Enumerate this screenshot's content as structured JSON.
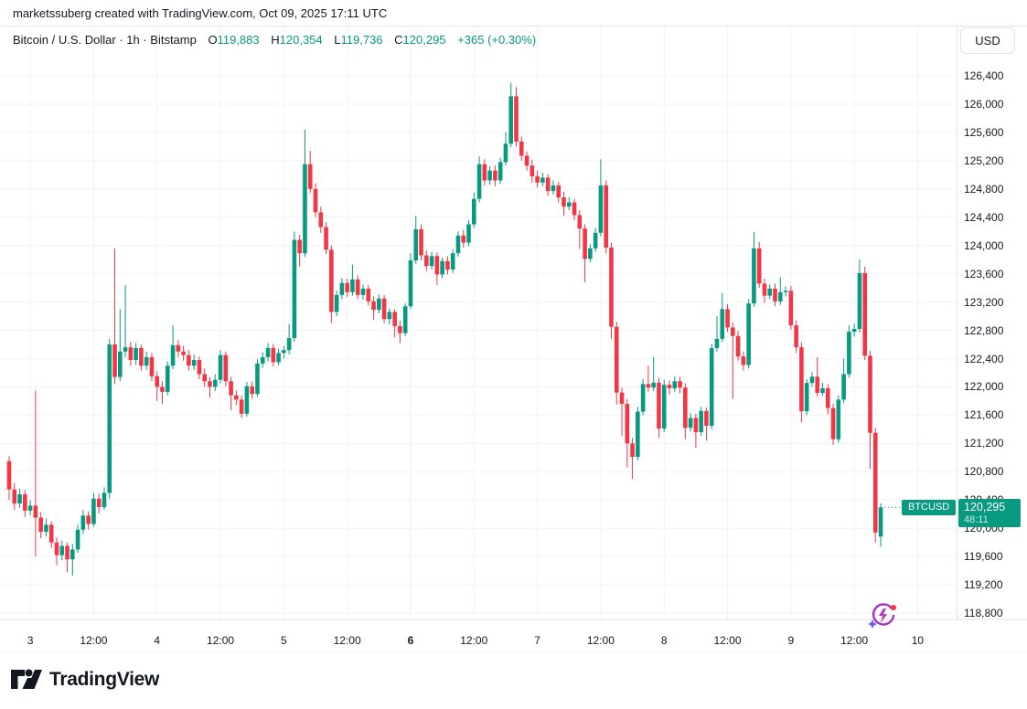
{
  "watermark": "marketssuberg created with TradingView.com, Oct 09, 2025 17:11 UTC",
  "legend": {
    "symbol_title": "Bitcoin / U.S. Dollar · 1h · Bitstamp",
    "open_label": "O",
    "open": "119,883",
    "high_label": "H",
    "high": "120,354",
    "low_label": "L",
    "low": "119,736",
    "close_label": "C",
    "close": "120,295",
    "change": "+365 (+0.30%)"
  },
  "currency_button": "USD",
  "symbol_tag": "BTCUSD",
  "price_tag": {
    "price": "120,295",
    "countdown": "48:11"
  },
  "logo_text": "TradingView",
  "icons": {
    "flash": "realtime-flash-icon"
  },
  "colors": {
    "up": "#089981",
    "down": "#F23645",
    "grid": "#F0F3FA",
    "separator": "#E0E3EB",
    "axis_text": "#131722",
    "tag_bg": "#089981"
  },
  "chart_data": {
    "type": "candlestick",
    "title": "Bitcoin / U.S. Dollar",
    "exchange": "Bitstamp",
    "interval": "1h",
    "current_price": 120295,
    "countdown": "48:11",
    "y_axis": {
      "min": 118800,
      "max": 126400,
      "tick_step": 400,
      "ticks": [
        126400,
        126000,
        125600,
        125200,
        124800,
        124400,
        124000,
        123600,
        123200,
        122800,
        122400,
        122000,
        121600,
        121200,
        120800,
        120400,
        120000,
        119600,
        119200,
        118800
      ]
    },
    "x_axis": {
      "ticks": [
        {
          "label": "3"
        },
        {
          "label": "12:00"
        },
        {
          "label": "4"
        },
        {
          "label": "12:00"
        },
        {
          "label": "5"
        },
        {
          "label": "12:00"
        },
        {
          "label": "6",
          "bold": true
        },
        {
          "label": "12:00"
        },
        {
          "label": "7"
        },
        {
          "label": "12:00"
        },
        {
          "label": "8"
        },
        {
          "label": "12:00"
        },
        {
          "label": "9"
        },
        {
          "label": "12:00"
        },
        {
          "label": "10"
        }
      ]
    },
    "candles": [
      [
        120950,
        121020,
        120400,
        120550
      ],
      [
        120550,
        120640,
        120260,
        120350
      ],
      [
        120350,
        120560,
        120290,
        120480
      ],
      [
        120480,
        120540,
        120160,
        120250
      ],
      [
        120250,
        120400,
        120180,
        120320
      ],
      [
        120320,
        121950,
        119600,
        120150
      ],
      [
        120150,
        120230,
        119860,
        119950
      ],
      [
        119950,
        120140,
        119880,
        120050
      ],
      [
        120050,
        120100,
        119720,
        119800
      ],
      [
        119800,
        119870,
        119480,
        119620
      ],
      [
        119620,
        119830,
        119550,
        119750
      ],
      [
        119750,
        119800,
        119380,
        119560
      ],
      [
        119560,
        119780,
        119330,
        119700
      ],
      [
        119700,
        120050,
        119650,
        119980
      ],
      [
        119980,
        120260,
        119920,
        120180
      ],
      [
        120180,
        120240,
        119980,
        120060
      ],
      [
        120060,
        120500,
        120020,
        120420
      ],
      [
        120420,
        120490,
        120210,
        120300
      ],
      [
        120300,
        120580,
        120260,
        120500
      ],
      [
        120500,
        122680,
        120420,
        122600
      ],
      [
        122600,
        123960,
        122040,
        122140
      ],
      [
        122140,
        123100,
        122080,
        122500
      ],
      [
        122500,
        123440,
        122420,
        122560
      ],
      [
        122560,
        122640,
        122300,
        122380
      ],
      [
        122380,
        122620,
        122310,
        122550
      ],
      [
        122550,
        122600,
        122230,
        122300
      ],
      [
        122300,
        122500,
        122240,
        122420
      ],
      [
        122420,
        122480,
        122080,
        122150
      ],
      [
        122150,
        122220,
        121800,
        122000
      ],
      [
        122000,
        122080,
        121760,
        121930
      ],
      [
        121930,
        122360,
        121880,
        122300
      ],
      [
        122300,
        122870,
        122250,
        122590
      ],
      [
        122590,
        122660,
        122420,
        122500
      ],
      [
        122500,
        122580,
        122370,
        122450
      ],
      [
        122450,
        122520,
        122230,
        122300
      ],
      [
        122300,
        122450,
        122240,
        122380
      ],
      [
        122380,
        122430,
        122110,
        122180
      ],
      [
        122180,
        122260,
        122000,
        122080
      ],
      [
        122080,
        122140,
        121850,
        122000
      ],
      [
        122000,
        122180,
        121940,
        122100
      ],
      [
        122100,
        122520,
        122050,
        122450
      ],
      [
        122450,
        122500,
        122010,
        122080
      ],
      [
        122080,
        122140,
        121670,
        121880
      ],
      [
        121880,
        121950,
        121740,
        121820
      ],
      [
        121820,
        121880,
        121560,
        121620
      ],
      [
        121620,
        122070,
        121580,
        122010
      ],
      [
        122010,
        122080,
        121830,
        121900
      ],
      [
        121900,
        122390,
        121860,
        122330
      ],
      [
        122330,
        122490,
        122270,
        122420
      ],
      [
        122420,
        122620,
        122360,
        122550
      ],
      [
        122550,
        122610,
        122290,
        122350
      ],
      [
        122350,
        122540,
        122300,
        122480
      ],
      [
        122480,
        122580,
        122400,
        122520
      ],
      [
        122520,
        122890,
        122460,
        122690
      ],
      [
        122690,
        124200,
        122640,
        124080
      ],
      [
        124080,
        124150,
        123700,
        123890
      ],
      [
        123890,
        125640,
        123840,
        125150
      ],
      [
        125150,
        125340,
        124740,
        124800
      ],
      [
        124800,
        124880,
        124400,
        124470
      ],
      [
        124470,
        124550,
        124180,
        124260
      ],
      [
        124260,
        124330,
        123880,
        123940
      ],
      [
        123940,
        124000,
        122900,
        123060
      ],
      [
        123060,
        123360,
        123000,
        123300
      ],
      [
        123300,
        123540,
        123240,
        123470
      ],
      [
        123470,
        123530,
        123270,
        123340
      ],
      [
        123340,
        123730,
        123290,
        123520
      ],
      [
        123520,
        123580,
        123240,
        123300
      ],
      [
        123300,
        123450,
        123230,
        123390
      ],
      [
        123390,
        123440,
        123150,
        123210
      ],
      [
        123210,
        123280,
        122950,
        123090
      ],
      [
        123090,
        123310,
        123040,
        123250
      ],
      [
        123250,
        123300,
        122900,
        122960
      ],
      [
        122960,
        123110,
        122880,
        123060
      ],
      [
        123060,
        123100,
        122700,
        122860
      ],
      [
        122860,
        122940,
        122620,
        122760
      ],
      [
        122760,
        123180,
        122720,
        123140
      ],
      [
        123140,
        123890,
        123100,
        123790
      ],
      [
        123790,
        124420,
        123740,
        124230
      ],
      [
        124230,
        124300,
        123790,
        123860
      ],
      [
        123860,
        123930,
        123640,
        123710
      ],
      [
        123710,
        123910,
        123660,
        123850
      ],
      [
        123850,
        123900,
        123440,
        123590
      ],
      [
        123590,
        123830,
        123540,
        123780
      ],
      [
        123780,
        123850,
        123590,
        123660
      ],
      [
        123660,
        123950,
        123610,
        123890
      ],
      [
        123890,
        124200,
        123840,
        124140
      ],
      [
        124140,
        124220,
        123970,
        124040
      ],
      [
        124040,
        124360,
        123990,
        124300
      ],
      [
        124300,
        124750,
        124250,
        124660
      ],
      [
        124660,
        125260,
        124610,
        125150
      ],
      [
        125150,
        125220,
        124850,
        124920
      ],
      [
        124920,
        125120,
        124860,
        125060
      ],
      [
        125060,
        125130,
        124840,
        124920
      ],
      [
        124920,
        125240,
        124870,
        125180
      ],
      [
        125180,
        125600,
        125130,
        125440
      ],
      [
        125440,
        126300,
        125390,
        126110
      ],
      [
        126110,
        126240,
        125400,
        125470
      ],
      [
        125470,
        125540,
        125200,
        125270
      ],
      [
        125270,
        125330,
        125060,
        125130
      ],
      [
        125130,
        125210,
        124890,
        124980
      ],
      [
        124980,
        125060,
        124820,
        124890
      ],
      [
        124890,
        125030,
        124840,
        124960
      ],
      [
        124960,
        125010,
        124700,
        124770
      ],
      [
        124770,
        124920,
        124720,
        124850
      ],
      [
        124850,
        124900,
        124610,
        124680
      ],
      [
        124680,
        124760,
        124420,
        124550
      ],
      [
        124550,
        124680,
        124500,
        124610
      ],
      [
        124610,
        124660,
        124360,
        124430
      ],
      [
        124430,
        124500,
        123950,
        124240
      ],
      [
        124240,
        124300,
        123480,
        123810
      ],
      [
        123810,
        124020,
        123760,
        123960
      ],
      [
        123960,
        124250,
        123910,
        124180
      ],
      [
        124180,
        125220,
        124130,
        124850
      ],
      [
        124850,
        124920,
        123890,
        123970
      ],
      [
        123970,
        124040,
        122680,
        122850
      ],
      [
        122850,
        122920,
        121750,
        121920
      ],
      [
        121920,
        121990,
        121310,
        121760
      ],
      [
        121760,
        121830,
        120860,
        121200
      ],
      [
        121200,
        121280,
        120700,
        121010
      ],
      [
        121010,
        121720,
        120960,
        121650
      ],
      [
        121650,
        122110,
        121600,
        122040
      ],
      [
        122040,
        122300,
        121930,
        121990
      ],
      [
        121990,
        122420,
        121940,
        122060
      ],
      [
        122060,
        122130,
        121280,
        121410
      ],
      [
        121410,
        122100,
        121360,
        122030
      ],
      [
        122030,
        122090,
        121890,
        121980
      ],
      [
        121980,
        122150,
        121930,
        122080
      ],
      [
        122080,
        122140,
        121910,
        121990
      ],
      [
        121990,
        122050,
        121260,
        121420
      ],
      [
        121420,
        121630,
        121370,
        121560
      ],
      [
        121560,
        121620,
        121140,
        121360
      ],
      [
        121360,
        121720,
        121310,
        121660
      ],
      [
        121660,
        121710,
        121240,
        121450
      ],
      [
        121450,
        122610,
        121400,
        122550
      ],
      [
        122550,
        123000,
        122500,
        122680
      ],
      [
        122680,
        123330,
        122630,
        123100
      ],
      [
        123100,
        123170,
        122780,
        122840
      ],
      [
        122840,
        122910,
        121830,
        122720
      ],
      [
        122720,
        122790,
        122370,
        122430
      ],
      [
        122430,
        122500,
        122230,
        122310
      ],
      [
        122310,
        123240,
        122260,
        123180
      ],
      [
        123180,
        124190,
        123130,
        123960
      ],
      [
        123960,
        124050,
        123400,
        123460
      ],
      [
        123460,
        123530,
        123190,
        123290
      ],
      [
        123290,
        123450,
        123240,
        123390
      ],
      [
        123390,
        123460,
        123140,
        123210
      ],
      [
        123210,
        123550,
        123160,
        123340
      ],
      [
        123340,
        123420,
        123280,
        123360
      ],
      [
        123360,
        123430,
        122810,
        122870
      ],
      [
        122870,
        122940,
        122480,
        122560
      ],
      [
        122560,
        122630,
        121500,
        121655
      ],
      [
        121655,
        122110,
        121600,
        122055
      ],
      [
        122055,
        122210,
        122000,
        122145
      ],
      [
        122145,
        122420,
        121860,
        121915
      ],
      [
        121915,
        122060,
        121870,
        121980
      ],
      [
        121980,
        122040,
        121610,
        121700
      ],
      [
        121700,
        121760,
        121180,
        121260
      ],
      [
        121260,
        121880,
        121210,
        121820
      ],
      [
        121820,
        122400,
        121770,
        122180
      ],
      [
        122180,
        122870,
        122130,
        122780
      ],
      [
        122780,
        122890,
        122710,
        122820
      ],
      [
        122820,
        123800,
        122770,
        123610
      ],
      [
        123610,
        123700,
        122380,
        122440
      ],
      [
        122440,
        122510,
        120840,
        121350
      ],
      [
        121350,
        121420,
        119800,
        119940
      ],
      [
        119883,
        120354,
        119736,
        120295
      ]
    ]
  }
}
